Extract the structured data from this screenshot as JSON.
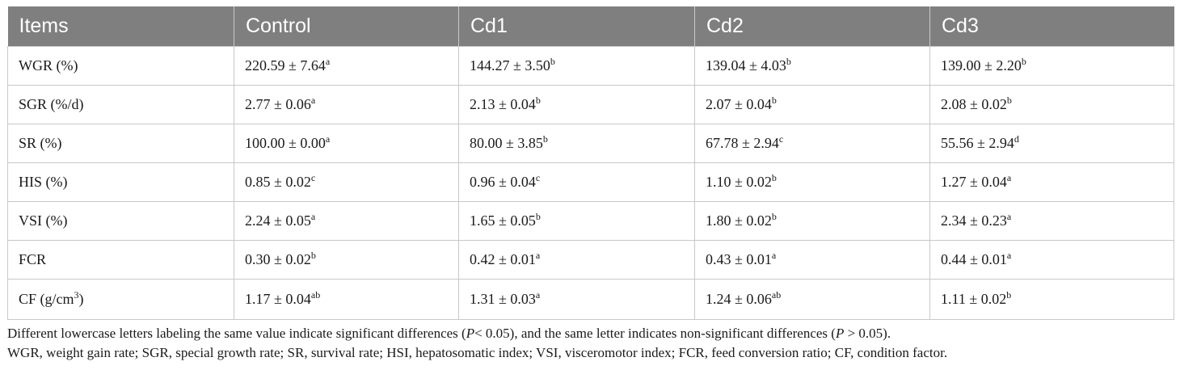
{
  "table": {
    "headers": [
      "Items",
      "Control",
      "Cd1",
      "Cd2",
      "Cd3"
    ],
    "rows": [
      {
        "item": {
          "text": "WGR (%)",
          "sup": ""
        },
        "cells": [
          {
            "value": "220.59 ± 7.64",
            "sup": "a"
          },
          {
            "value": "144.27 ± 3.50",
            "sup": "b"
          },
          {
            "value": "139.04 ± 4.03",
            "sup": "b"
          },
          {
            "value": "139.00 ± 2.20",
            "sup": "b"
          }
        ]
      },
      {
        "item": {
          "text": "SGR (%/d)",
          "sup": ""
        },
        "cells": [
          {
            "value": "2.77 ± 0.06",
            "sup": "a"
          },
          {
            "value": "2.13 ± 0.04",
            "sup": "b"
          },
          {
            "value": "2.07 ± 0.04",
            "sup": "b"
          },
          {
            "value": "2.08 ± 0.02",
            "sup": "b"
          }
        ]
      },
      {
        "item": {
          "text": "SR (%)",
          "sup": ""
        },
        "cells": [
          {
            "value": "100.00 ± 0.00",
            "sup": "a"
          },
          {
            "value": "80.00 ± 3.85",
            "sup": "b"
          },
          {
            "value": "67.78 ± 2.94",
            "sup": "c"
          },
          {
            "value": "55.56 ± 2.94",
            "sup": "d"
          }
        ]
      },
      {
        "item": {
          "text": "HIS (%)",
          "sup": ""
        },
        "cells": [
          {
            "value": "0.85 ± 0.02",
            "sup": "c"
          },
          {
            "value": "0.96 ± 0.04",
            "sup": "c"
          },
          {
            "value": "1.10 ± 0.02",
            "sup": "b"
          },
          {
            "value": "1.27 ± 0.04",
            "sup": "a"
          }
        ]
      },
      {
        "item": {
          "text": "VSI (%)",
          "sup": ""
        },
        "cells": [
          {
            "value": "2.24 ± 0.05",
            "sup": "a"
          },
          {
            "value": "1.65 ± 0.05",
            "sup": "b"
          },
          {
            "value": "1.80 ± 0.02",
            "sup": "b"
          },
          {
            "value": "2.34 ± 0.23",
            "sup": "a"
          }
        ]
      },
      {
        "item": {
          "text": "FCR",
          "sup": ""
        },
        "cells": [
          {
            "value": "0.30 ± 0.02",
            "sup": "b"
          },
          {
            "value": "0.42 ± 0.01",
            "sup": "a"
          },
          {
            "value": "0.43 ± 0.01",
            "sup": "a"
          },
          {
            "value": "0.44 ± 0.01",
            "sup": "a"
          }
        ]
      },
      {
        "item": {
          "text": "CF (g/cm",
          "sup": "3",
          "tail": ")"
        },
        "cells": [
          {
            "value": "1.17 ± 0.04",
            "sup": "ab"
          },
          {
            "value": "1.31 ± 0.03",
            "sup": "a"
          },
          {
            "value": "1.24 ± 0.06",
            "sup": "ab"
          },
          {
            "value": "1.11 ± 0.02",
            "sup": "b"
          }
        ]
      }
    ]
  },
  "footnote1": {
    "part1": "Different lowercase letters labeling the same value indicate significant differences (",
    "p1": "P",
    "part2": "< 0.05), and the same letter indicates non-significant differences (",
    "p2": "P",
    "part3": " > 0.05)."
  },
  "footnote2": "WGR, weight gain rate; SGR, special growth rate; SR, survival rate; HSI, hepatosomatic index; VSI, visceromotor index; FCR, feed conversion ratio; CF, condition factor.",
  "colors": {
    "header_bg": "#7f7f7f",
    "header_text": "#ffffff",
    "grid": "#c8c8c8"
  }
}
